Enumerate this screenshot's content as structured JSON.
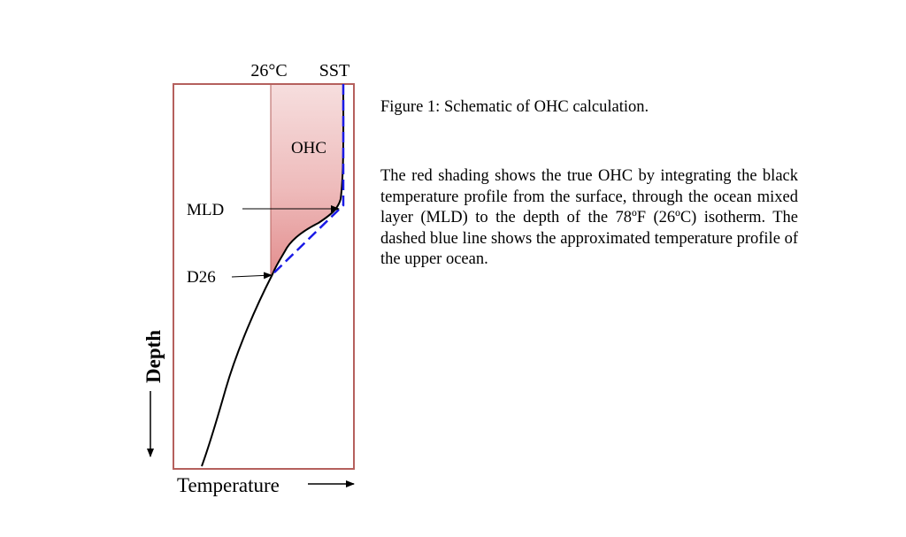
{
  "diagram": {
    "top_label_isotherm": "26°C",
    "top_label_sst": "SST",
    "region_label": "OHC",
    "label_mld": "MLD",
    "label_d26": "D26",
    "axis_x_label": "Temperature",
    "axis_y_label": "Depth",
    "colors": {
      "frame": "#b5605d",
      "shading": "#e89b9b",
      "profile": "#000000",
      "approximation": "#1a1ae6"
    }
  },
  "caption": {
    "title": "Figure 1: Schematic of OHC calculation.",
    "body": "The red shading shows the true OHC by integrating the black temperature profile from the surface, through the ocean mixed layer (MLD) to the depth of the 78ºF (26ºC) isotherm. The dashed blue line shows the approximated temperature profile of the upper ocean."
  }
}
